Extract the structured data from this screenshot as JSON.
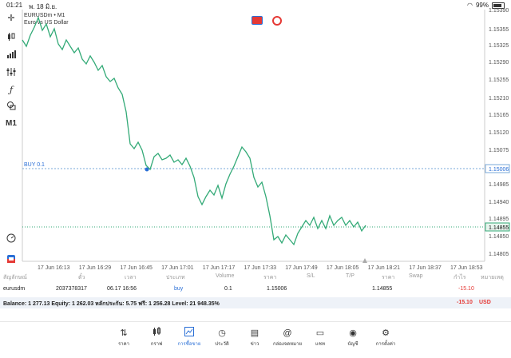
{
  "status_bar": {
    "time": "01:21",
    "date": "พ. 18 มิ.ย.",
    "battery": "99%"
  },
  "chart": {
    "symbol": "EURUSDm • M1",
    "description": "Euro vs US Dollar",
    "price_levels": [
      "1.15390",
      "1.15355",
      "1.15325",
      "1.15290",
      "1.15255",
      "1.15210",
      "1.15165",
      "1.15120",
      "1.15075",
      "1.15030",
      "1.14985",
      "1.14940",
      "1.14895",
      "1.14850",
      "1.14805"
    ],
    "time_labels": [
      "17 Jun 16:13",
      "17 Jun 16:29",
      "17 Jun 16:45",
      "17 Jun 17:01",
      "17 Jun 17:17",
      "17 Jun 17:33",
      "17 Jun 17:49",
      "17 Jun 18:05",
      "17 Jun 18:21",
      "17 Jun 18:37",
      "17 Jun 18:53"
    ],
    "buy_label": "BUY 0.1",
    "buy_price": "1.15006",
    "current_price": "1.14855",
    "line_color": "#33aa77"
  },
  "table": {
    "headers": [
      "สัญลักษณ์",
      "ตั๋ว",
      "เวลา",
      "ประเภท",
      "Volume",
      "ราคา",
      "S/L",
      "T/P",
      "ราคา",
      "Swap",
      "กำไร",
      "หมายเหตุ"
    ],
    "row": {
      "symbol": "eurusdm",
      "ticket": "2037378317",
      "time": "06.17 16:56",
      "type": "buy",
      "volume": "0.1",
      "open_price": "1.15006",
      "current_price": "1.14855",
      "profit": "-15.10"
    },
    "balance_text": "Balance: 1 277.13 Equity: 1 262.03 หลักประกัน: 5.75 ฟรี: 1 256.28 Level: 21 948.35%",
    "balance_profit": "-15.10",
    "currency": "USD"
  },
  "nav": [
    {
      "label": "ราคา",
      "icon": "quotes-icon"
    },
    {
      "label": "กราฟ",
      "icon": "candles-icon"
    },
    {
      "label": "การซื้อขาย",
      "icon": "trade-icon",
      "active": true
    },
    {
      "label": "ประวัติ",
      "icon": "history-icon"
    },
    {
      "label": "ข่าว",
      "icon": "news-icon"
    },
    {
      "label": "กล่องจดหมาย",
      "icon": "mail-icon"
    },
    {
      "label": "แชท",
      "icon": "chat-icon"
    },
    {
      "label": "บัญชี",
      "icon": "account-icon"
    },
    {
      "label": "การตั้งค่า",
      "icon": "settings-icon"
    }
  ]
}
